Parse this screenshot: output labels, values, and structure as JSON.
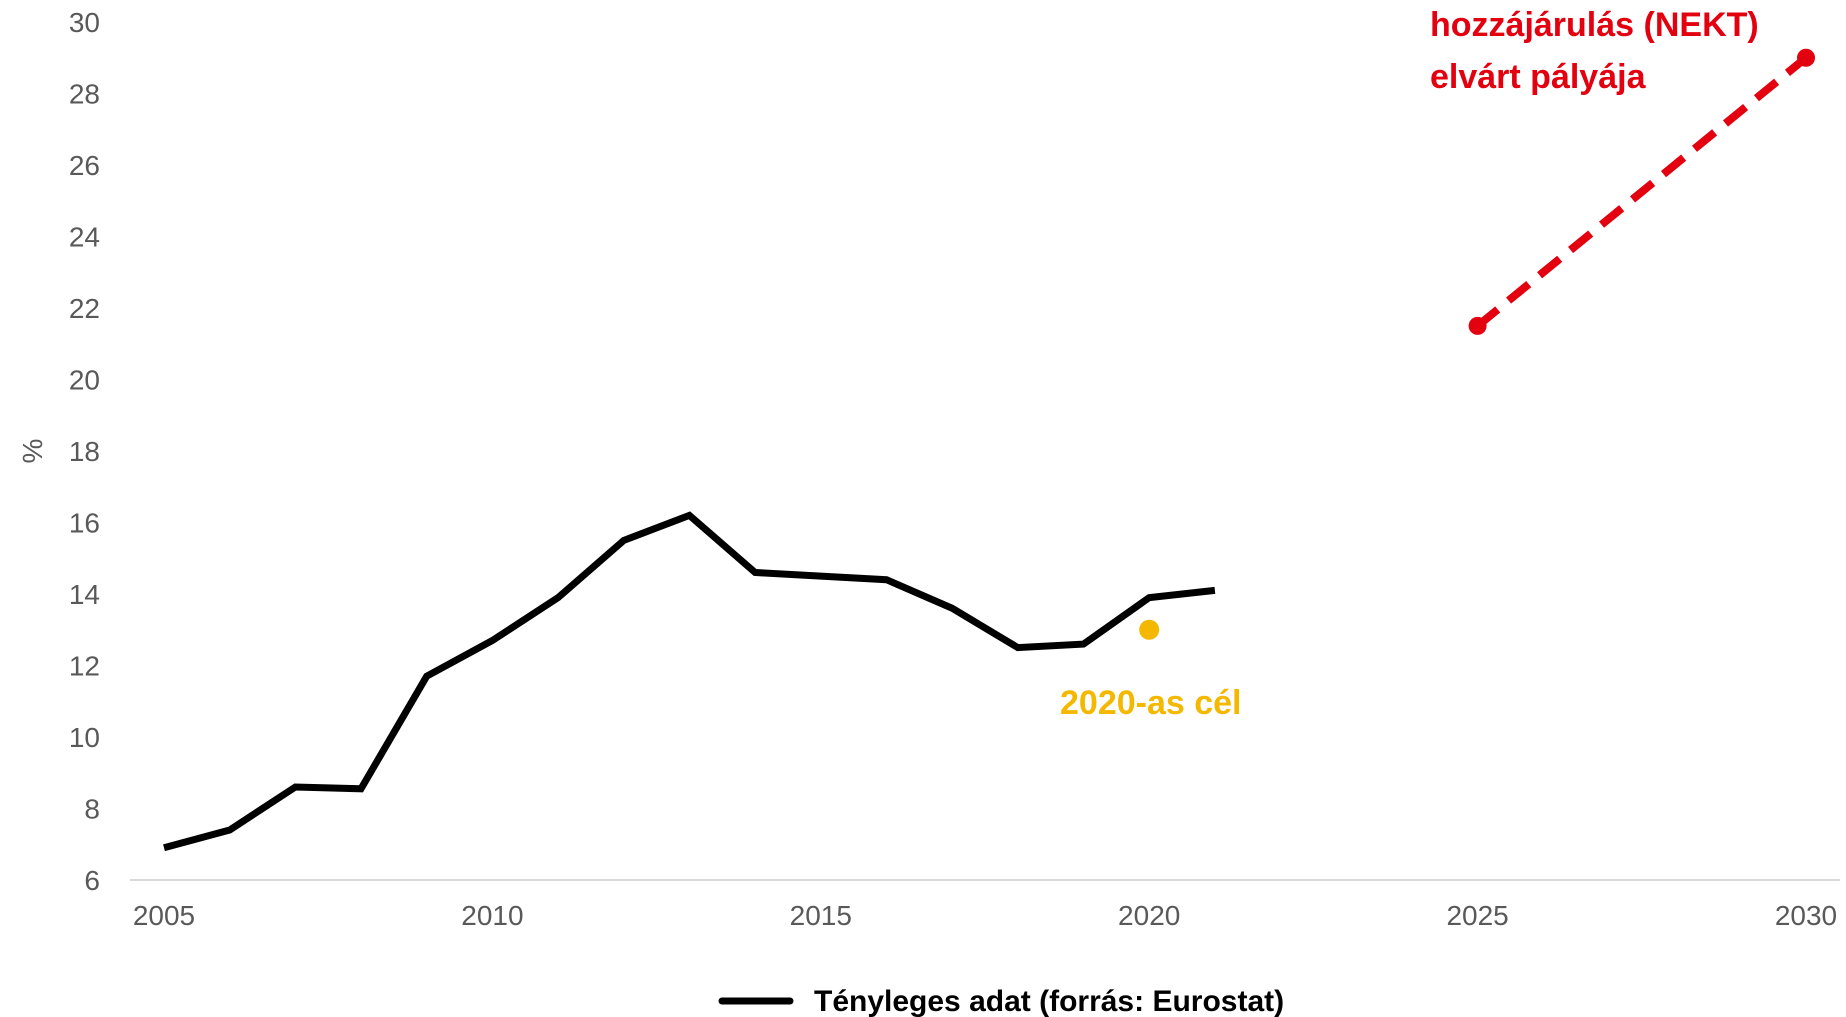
{
  "chart_data": {
    "type": "line",
    "ylabel": "%",
    "ylim": [
      6,
      30
    ],
    "yticks": [
      6,
      8,
      10,
      12,
      14,
      16,
      18,
      20,
      22,
      24,
      26,
      28,
      30
    ],
    "xlim": [
      2005,
      2030
    ],
    "xticks": [
      2005,
      2010,
      2015,
      2020,
      2025,
      2030
    ],
    "grid": false,
    "legend_position": "bottom",
    "series": [
      {
        "name": "Tényleges adat (forrás: Eurostat)",
        "style": "solid",
        "color": "#000000",
        "x": [
          2005,
          2006,
          2007,
          2008,
          2009,
          2010,
          2011,
          2012,
          2013,
          2014,
          2015,
          2016,
          2017,
          2018,
          2019,
          2020,
          2021
        ],
        "y": [
          6.9,
          7.4,
          8.6,
          8.55,
          11.7,
          12.7,
          13.9,
          15.5,
          16.2,
          14.6,
          14.5,
          14.4,
          13.6,
          12.5,
          12.6,
          13.9,
          14.1
        ]
      },
      {
        "name": "hozzájárulás (NEKT) elvárt pályája",
        "style": "dashed",
        "color": "#e3000f",
        "x": [
          2025,
          2030
        ],
        "y": [
          21.5,
          29.0
        ]
      },
      {
        "name": "2020-as cél",
        "style": "point",
        "color": "#f5b800",
        "x": [
          2020
        ],
        "y": [
          13.0
        ]
      }
    ],
    "annotations": {
      "red_line1": "hozzájárulás (NEKT)",
      "red_line2": "elvárt pályája",
      "yellow": "2020-as cél"
    },
    "legend": [
      "Tényleges adat (forrás: Eurostat)"
    ]
  }
}
